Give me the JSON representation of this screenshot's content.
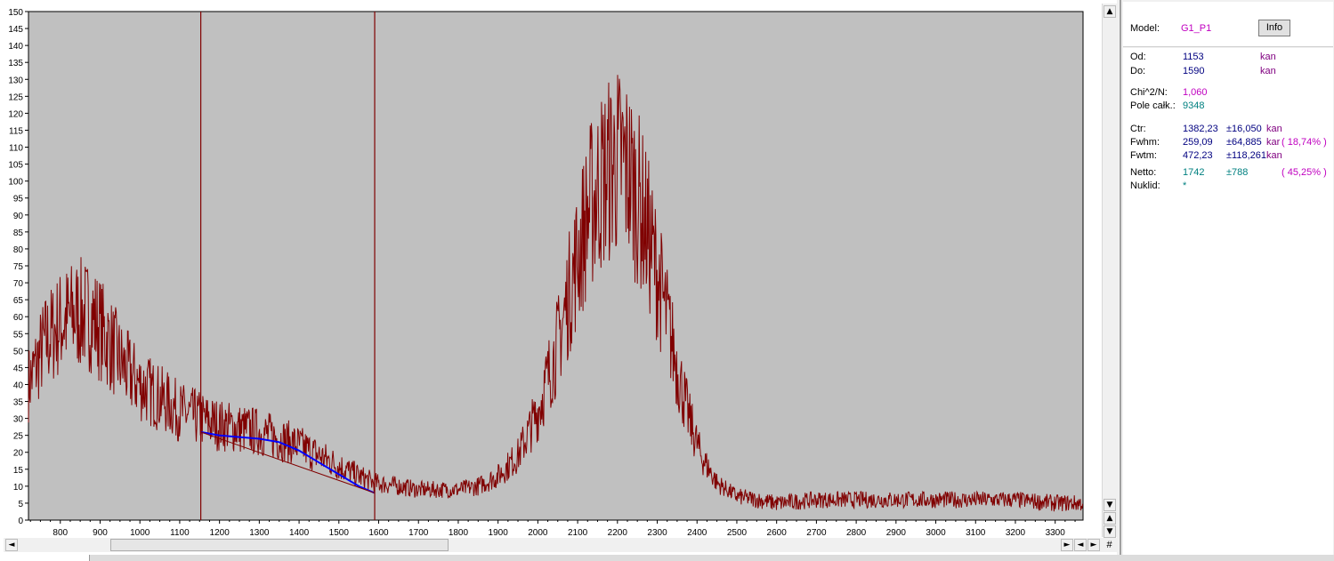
{
  "chart_data": {
    "type": "line",
    "xlim": [
      720,
      3370
    ],
    "ylim": [
      0,
      150
    ],
    "x_ticks": [
      800,
      900,
      1000,
      1100,
      1200,
      1300,
      1400,
      1500,
      1600,
      1700,
      1800,
      1900,
      2000,
      2100,
      2200,
      2300,
      2400,
      2500,
      2600,
      2700,
      2800,
      2900,
      3000,
      3100,
      3200,
      3300
    ],
    "y_ticks": [
      0,
      5,
      10,
      15,
      20,
      25,
      30,
      35,
      40,
      45,
      50,
      55,
      60,
      65,
      70,
      75,
      80,
      85,
      90,
      95,
      100,
      105,
      110,
      115,
      120,
      125,
      130,
      135,
      140,
      145,
      150
    ],
    "series": [
      {
        "role": "spectrum",
        "color": "#800000",
        "x": [
          720,
          760,
          800,
          840,
          880,
          920,
          960,
          1000,
          1050,
          1100,
          1150,
          1200,
          1250,
          1300,
          1350,
          1400,
          1450,
          1500,
          1550,
          1590,
          1650,
          1700,
          1750,
          1800,
          1850,
          1900,
          1950,
          2000,
          2050,
          2100,
          2130,
          2160,
          2190,
          2210,
          2230,
          2260,
          2290,
          2320,
          2350,
          2380,
          2410,
          2450,
          2500,
          2550,
          2600,
          2700,
          2800,
          2900,
          3000,
          3100,
          3200,
          3300,
          3370
        ],
        "y": [
          40,
          52,
          58,
          61,
          60,
          53,
          45,
          40,
          36,
          32,
          30,
          28,
          27,
          26,
          24,
          22,
          19,
          16,
          13,
          11,
          10,
          9,
          9,
          9,
          10,
          13,
          19,
          32,
          52,
          78,
          92,
          100,
          105,
          106,
          102,
          92,
          78,
          62,
          45,
          30,
          19,
          11,
          7,
          6,
          5,
          6,
          6,
          6,
          6,
          6,
          6,
          5,
          5
        ],
        "noise_amplitude_rel": 0.28
      },
      {
        "role": "fit",
        "color": "#0000ff",
        "x": [
          1153,
          1200,
          1250,
          1300,
          1350,
          1400,
          1450,
          1500,
          1550,
          1590
        ],
        "y": [
          26,
          25,
          24.5,
          24,
          23,
          20.5,
          17,
          13.5,
          10,
          8
        ]
      },
      {
        "role": "background",
        "color": "#800000",
        "x": [
          1153,
          1590
        ],
        "y": [
          26,
          8
        ]
      }
    ],
    "markers_x": [
      1153,
      1590
    ]
  },
  "panel": {
    "model_label": "Model:",
    "model_value": "G1_P1",
    "info_button": "Info",
    "od_label": "Od:",
    "od_value": "1153",
    "od_unit": "kan",
    "do_label": "Do:",
    "do_value": "1590",
    "do_unit": "kan",
    "chi_label": "Chi^2/N:",
    "chi_value": "1,060",
    "pole_label": "Pole całk.:",
    "pole_value": "9348",
    "ctr_label": "Ctr:",
    "ctr_value": "1382,23",
    "ctr_err": "±16,050",
    "ctr_unit": "kan",
    "fwhm_label": "Fwhm:",
    "fwhm_value": "259,09",
    "fwhm_err": "±64,885",
    "fwhm_unit": "kar",
    "fwhm_pct": "( 18,74% )",
    "fwtm_label": "Fwtm:",
    "fwtm_value": "472,23",
    "fwtm_err": "±118,261",
    "fwtm_unit": "kan",
    "netto_label": "Netto:",
    "netto_value": "1742",
    "netto_err": "±788",
    "netto_pct": "( 45,25% )",
    "nuklid_label": "Nuklid:",
    "nuklid_value": "*"
  },
  "scroll": {
    "up": "▲",
    "down": "▼",
    "left": "◄",
    "right": "►",
    "corner": "#"
  }
}
